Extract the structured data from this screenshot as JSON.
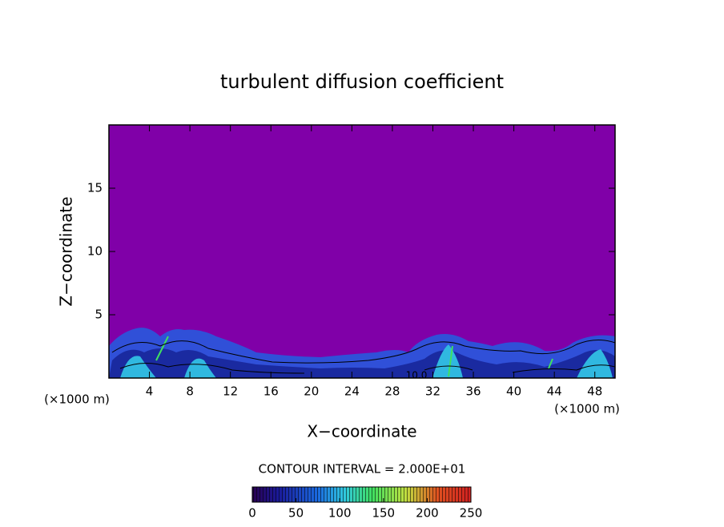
{
  "chart_data": {
    "type": "contour",
    "title": "turbulent diffusion coefficient",
    "xlabel": "X−coordinate",
    "ylabel": "Z−coordinate",
    "x_unit_left": "(×1000 m)",
    "x_unit_right": "(×1000 m)",
    "xlim": [
      0,
      50
    ],
    "ylim": [
      0,
      20
    ],
    "xticks": [
      4,
      8,
      12,
      16,
      20,
      24,
      28,
      32,
      36,
      40,
      44,
      48
    ],
    "yticks": [
      5,
      10,
      15
    ],
    "contour_label": "10.0",
    "contour_interval": "CONTOUR INTERVAL = 2.000E+01",
    "clim": [
      0,
      250
    ],
    "cticks": [
      0,
      50,
      100,
      150,
      200,
      250
    ]
  }
}
